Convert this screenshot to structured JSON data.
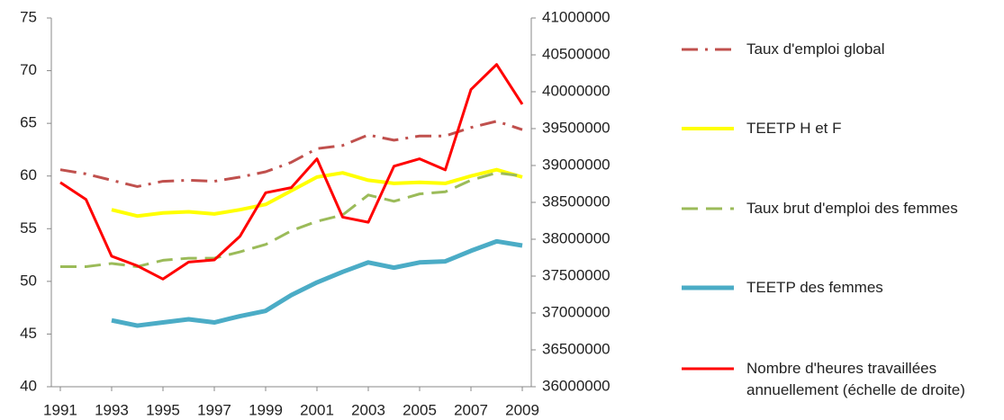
{
  "chart_data": {
    "type": "line",
    "x": [
      1991,
      1992,
      1993,
      1994,
      1995,
      1996,
      1997,
      1998,
      1999,
      2000,
      2001,
      2002,
      2003,
      2004,
      2005,
      2006,
      2007,
      2008,
      2009
    ],
    "xlim": [
      1990.65,
      2009.35
    ],
    "xticks": [
      1991,
      1993,
      1995,
      1997,
      1999,
      2001,
      2003,
      2005,
      2007,
      2009
    ],
    "ylim": [
      40,
      75
    ],
    "yticks": [
      40,
      45,
      50,
      55,
      60,
      65,
      70,
      75
    ],
    "y2lim": [
      36000000,
      41000000
    ],
    "y2ticks": [
      36000000,
      36500000,
      37000000,
      37500000,
      38000000,
      38500000,
      39000000,
      39500000,
      40000000,
      40500000,
      41000000
    ],
    "grid": false,
    "series": [
      {
        "name": "Taux d'emploi global",
        "color": "#c0504d",
        "style": "dashdot",
        "width": 3,
        "values": [
          60.6,
          60.2,
          59.6,
          59.0,
          59.5,
          59.6,
          59.5,
          59.9,
          60.4,
          61.3,
          62.6,
          62.9,
          63.9,
          63.4,
          63.8,
          63.8,
          64.6,
          65.2,
          64.4
        ]
      },
      {
        "name": "TEETP H et F",
        "color": "#ffff00",
        "style": "solid",
        "width": 4,
        "values": [
          null,
          null,
          56.8,
          56.2,
          56.5,
          56.6,
          56.4,
          56.8,
          57.3,
          58.6,
          59.9,
          60.3,
          59.6,
          59.3,
          59.4,
          59.3,
          60.0,
          60.6,
          59.9
        ]
      },
      {
        "name": "Taux brut d'emploi des femmes",
        "color": "#9bbb59",
        "style": "dash",
        "width": 3,
        "values": [
          51.4,
          51.4,
          51.7,
          51.4,
          52.0,
          52.2,
          52.2,
          52.8,
          53.5,
          54.8,
          55.7,
          56.3,
          58.2,
          57.6,
          58.3,
          58.5,
          59.6,
          60.3,
          60.0
        ]
      },
      {
        "name": "TEETP des femmes",
        "color": "#4bacc6",
        "style": "solid",
        "width": 5,
        "values": [
          null,
          null,
          46.3,
          45.8,
          46.1,
          46.4,
          46.1,
          46.7,
          47.2,
          48.7,
          49.9,
          50.9,
          51.8,
          51.3,
          51.8,
          51.9,
          52.9,
          53.8,
          53.4
        ]
      },
      {
        "name": "Nombre d'heures travaillées annuellement (échelle de droite)",
        "color": "#ff0000",
        "style": "solid",
        "width": 3,
        "axis": "y2",
        "values": [
          38770000,
          38540000,
          37770000,
          37640000,
          37460000,
          37690000,
          37720000,
          38040000,
          38630000,
          38700000,
          39090000,
          38300000,
          38230000,
          38990000,
          39090000,
          38940000,
          40030000,
          40370000,
          39830000
        ]
      }
    ]
  }
}
